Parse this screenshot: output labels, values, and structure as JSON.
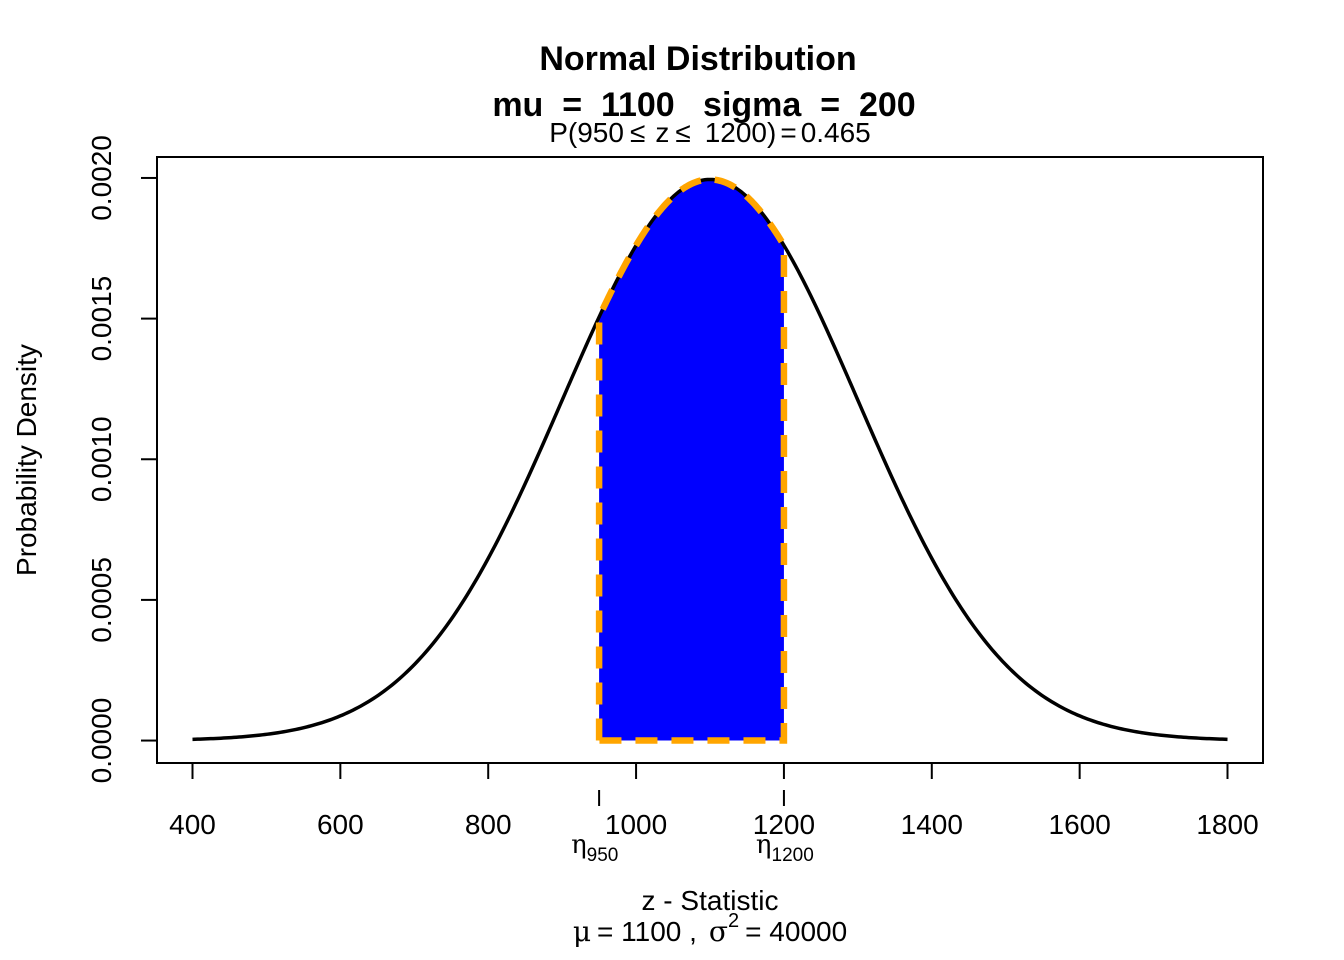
{
  "chart_data": {
    "type": "area",
    "title": "Normal Distribution",
    "subtitle": "mu  =  1100   sigma  =  200",
    "probability_label": {
      "prefix": "P(",
      "lower": "950",
      "le1": "≤",
      "var": "z",
      "le2": "≤",
      "upper": "1200",
      "close": ")",
      "equals": "=",
      "value": "0.465"
    },
    "xlabel": "z - Statistic",
    "xlabel2": {
      "mu_symbol": "μ",
      "mu_text": "= 1100 ,",
      "sigma_symbol": "σ",
      "sigma_exp": "2",
      "sigma_text": "= 40000"
    },
    "ylabel": "Probability Density",
    "mu": 1100,
    "sigma": 200,
    "x_range": [
      400,
      1800
    ],
    "xlim": [
      352,
      1848
    ],
    "ylim": [
      -7.98e-05,
      0.0020745
    ],
    "x_ticks": [
      400,
      600,
      800,
      1000,
      1200,
      1400,
      1600,
      1800
    ],
    "x_tick_labels": [
      "400",
      "600",
      "800",
      "1000",
      "1200",
      "1400",
      "1600",
      "1800"
    ],
    "y_ticks": [
      0,
      0.0005,
      0.001,
      0.0015,
      0.002
    ],
    "y_tick_labels": [
      "0.0000",
      "0.0005",
      "0.0010",
      "0.0015",
      "0.0020"
    ],
    "shaded_interval": {
      "from": 950,
      "to": 1200,
      "probability": 0.465,
      "fill_color": "#0000ff",
      "border_color": "#ffa500"
    },
    "interval_markers": [
      {
        "x": 950,
        "symbol": "η",
        "subscript": "950"
      },
      {
        "x": 1200,
        "symbol": "η",
        "subscript": "1200"
      }
    ],
    "curve_color": "#000000",
    "grid": false,
    "legend": "none"
  }
}
